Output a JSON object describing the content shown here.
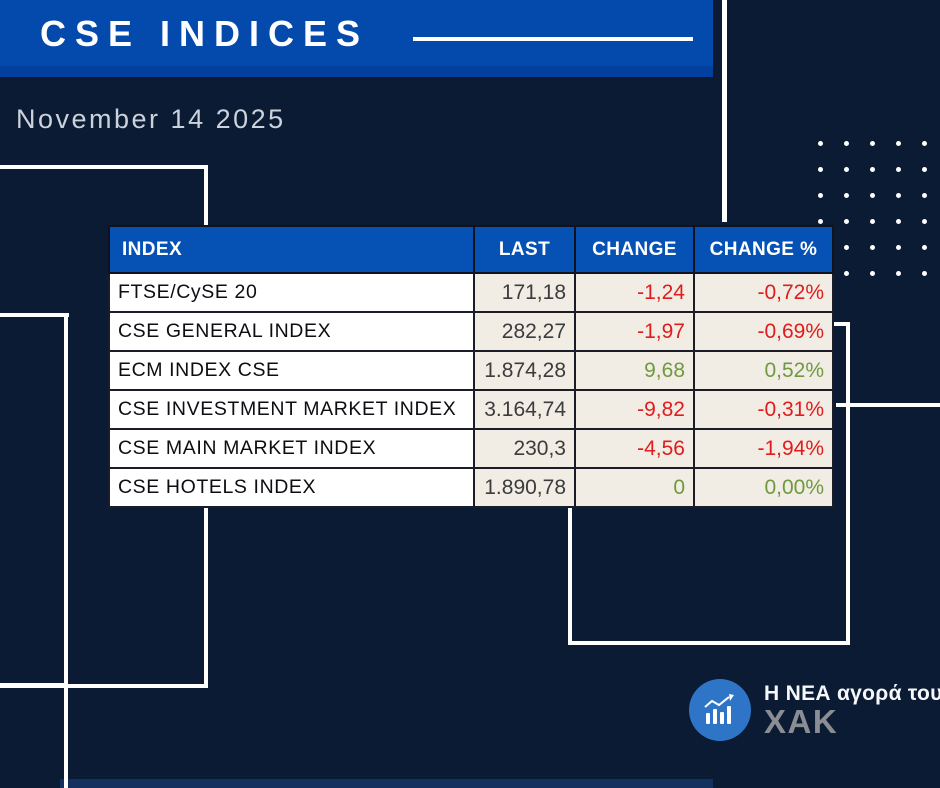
{
  "banner": {
    "title": "CSE INDICES"
  },
  "date": "November 14 2025",
  "table": {
    "headers": [
      "INDEX",
      "LAST",
      "CHANGE",
      "CHANGE %"
    ],
    "rows": [
      {
        "index": "FTSE/CySE 20",
        "last": "171,18",
        "change": "-1,24",
        "change_pct": "-0,72%",
        "trend": "down"
      },
      {
        "index": "CSE GENERAL INDEX",
        "last": "282,27",
        "change": "-1,97",
        "change_pct": "-0,69%",
        "trend": "down"
      },
      {
        "index": "ECM INDEX CSE",
        "last": "1.874,28",
        "change": "9,68",
        "change_pct": "0,52%",
        "trend": "up"
      },
      {
        "index": "CSE INVESTMENT MARKET INDEX",
        "last": "3.164,74",
        "change": "-9,82",
        "change_pct": "-0,31%",
        "trend": "down"
      },
      {
        "index": "CSE MAIN MARKET INDEX",
        "last": "230,3",
        "change": "-4,56",
        "change_pct": "-1,94%",
        "trend": "down"
      },
      {
        "index": "CSE HOTELS INDEX",
        "last": "1.890,78",
        "change": "0",
        "change_pct": "0,00%",
        "trend": "flat"
      }
    ]
  },
  "logo": {
    "tagline": "Η ΝΕΑ αγορά του",
    "name": "ΧΑΚ",
    "icon": "bar-chart-icon"
  },
  "colors": {
    "background_navy": "#0a1b33",
    "banner_blue": "#0449ac",
    "header_blue": "#0551b4",
    "cell_beige": "#f1ece4",
    "negative_red": "#e11c1c",
    "positive_green": "#70993f",
    "logo_blue": "#2e75c7",
    "logo_name_gray": "#8a8d93"
  },
  "decor": {
    "dots_columns": 5,
    "dots_rows": 6
  },
  "chart_data": {
    "type": "table",
    "title": "CSE INDICES",
    "date": "November 14 2025",
    "columns": [
      "INDEX",
      "LAST",
      "CHANGE",
      "CHANGE %"
    ],
    "rows": [
      [
        "FTSE/CySE 20",
        "171,18",
        "-1,24",
        "-0,72%"
      ],
      [
        "CSE GENERAL INDEX",
        "282,27",
        "-1,97",
        "-0,69%"
      ],
      [
        "ECM INDEX CSE",
        "1.874,28",
        "9,68",
        "0,52%"
      ],
      [
        "CSE INVESTMENT MARKET INDEX",
        "3.164,74",
        "-9,82",
        "-0,31%"
      ],
      [
        "CSE MAIN MARKET INDEX",
        "230,3",
        "-4,56",
        "-1,94%"
      ],
      [
        "CSE HOTELS INDEX",
        "1.890,78",
        "0",
        "0,00%"
      ]
    ]
  }
}
